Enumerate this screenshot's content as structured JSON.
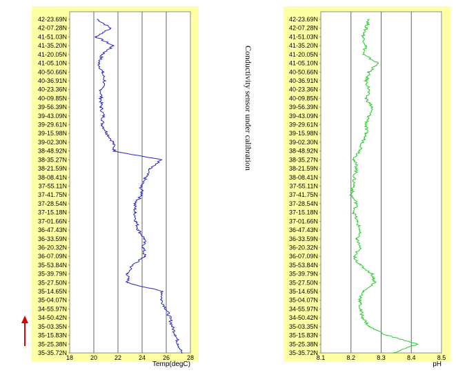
{
  "chart_data": [
    {
      "type": "line",
      "title": "",
      "xlabel": "Temp(degC)",
      "ylabel": "",
      "xlim": [
        18,
        28
      ],
      "xticks": [
        18,
        20,
        22,
        24,
        26,
        28
      ],
      "grid": true,
      "line_color": "#2222cc",
      "background": "#ffffa6",
      "categories": [
        "42-23.69N",
        "42-07.28N",
        "41-51.03N",
        "41-35.20N",
        "41-20.05N",
        "41-05.10N",
        "40-50.66N",
        "40-36.91N",
        "40-23.36N",
        "40-09.85N",
        "39-56.39N",
        "39-43.09N",
        "39-29.61N",
        "39-15.98N",
        "39-02.30N",
        "38-48.92N",
        "38-35.27N",
        "38-21.59N",
        "38-08.41N",
        "37-55.11N",
        "37-41.75N",
        "37-28.54N",
        "37-15.18N",
        "37-01.66N",
        "36-47.43N",
        "36-33.59N",
        "36-20.32N",
        "36-07.09N",
        "35-53.84N",
        "35-39.79N",
        "35-27.50N",
        "35-14.65N",
        "35-04.07N",
        "34-55.97N",
        "34-50.42N",
        "35-03.35N",
        "35-15.83N",
        "35-25.38N",
        "35-35.72N"
      ],
      "values": [
        20.3,
        21.4,
        20.2,
        21.6,
        20.7,
        20.4,
        20.7,
        20.9,
        20.6,
        20.6,
        20.6,
        20.8,
        20.7,
        21.1,
        21.6,
        21.7,
        25.6,
        24.6,
        24.3,
        23.9,
        24.0,
        23.4,
        23.4,
        23.5,
        23.7,
        24.2,
        24.1,
        24.2,
        23.2,
        22.8,
        22.8,
        25.7,
        25.6,
        26.0,
        26.3,
        26.5,
        26.8,
        27.0,
        27.3
      ]
    },
    {
      "type": "line",
      "title": "",
      "xlabel": "pH",
      "ylabel": "",
      "xlim": [
        8.1,
        8.5
      ],
      "xticks": [
        8.1,
        8.2,
        8.3,
        8.4,
        8.5
      ],
      "grid": true,
      "line_color": "#22cc22",
      "background": "#ffffa6",
      "categories": [
        "42-23.69N",
        "42-07.28N",
        "41-51.03N",
        "41-35.20N",
        "41-20.05N",
        "41-05.10N",
        "40-50.66N",
        "40-36.91N",
        "40-23.36N",
        "40-09.85N",
        "39-56.39N",
        "39-43.09N",
        "39-29.61N",
        "39-15.98N",
        "39-02.30N",
        "38-48.92N",
        "38-35.27N",
        "38-21.59N",
        "38-08.41N",
        "37-55.11N",
        "37-41.75N",
        "37-28.54N",
        "37-15.18N",
        "37-01.66N",
        "36-47.43N",
        "36-33.59N",
        "36-20.32N",
        "36-07.09N",
        "35-53.84N",
        "35-39.79N",
        "35-27.50N",
        "35-14.65N",
        "35-04.07N",
        "34-55.97N",
        "34-50.42N",
        "35-03.35N",
        "35-15.83N",
        "35-25.38N",
        "35-35.72N"
      ],
      "values": [
        8.26,
        8.25,
        8.24,
        8.25,
        8.24,
        8.29,
        8.26,
        8.25,
        8.26,
        8.25,
        8.27,
        8.26,
        8.25,
        8.25,
        8.24,
        8.23,
        8.21,
        8.22,
        8.21,
        8.21,
        8.2,
        8.22,
        8.21,
        8.22,
        8.23,
        8.22,
        8.23,
        8.21,
        8.23,
        8.27,
        8.28,
        8.24,
        8.23,
        8.23,
        8.24,
        8.26,
        8.32,
        8.42,
        8.34
      ]
    }
  ],
  "annotation": "Conductivity sensor under calibration",
  "arrow": {
    "direction": "up",
    "color": "#dd0000"
  }
}
